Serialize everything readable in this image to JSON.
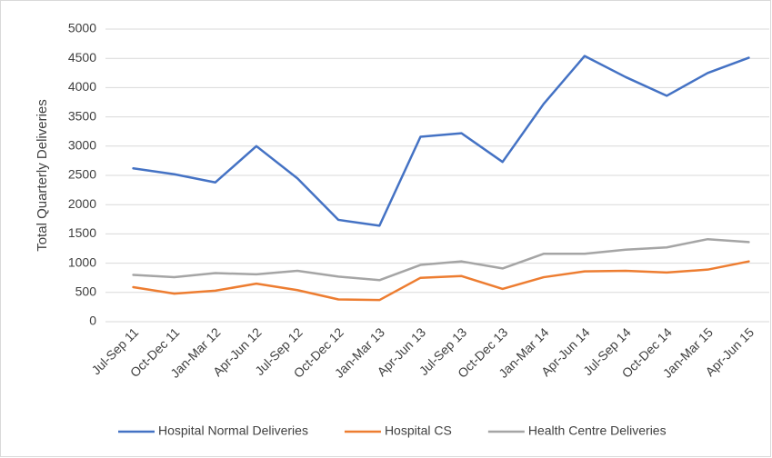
{
  "chart_data": {
    "type": "line",
    "y_label": "Total Quarterly Deliveries",
    "categories": [
      "Jul-Sep 11",
      "Oct-Dec 11",
      "Jan-Mar 12",
      "Apr-Jun 12",
      "Jul-Sep 12",
      "Oct-Dec 12",
      "Jan-Mar 13",
      "Apr-Jun 13",
      "Jul-Sep 13",
      "Oct-Dec 13",
      "Jan-Mar 14",
      "Apr-Jun 14",
      "Jul-Sep 14",
      "Oct-Dec 14",
      "Jan-Mar 15",
      "Apr-Jun 15"
    ],
    "series": [
      {
        "name": "Hospital Normal Deliveries",
        "color": "#4472c4",
        "values": [
          2620,
          2520,
          2380,
          3000,
          2450,
          1740,
          1640,
          3160,
          3220,
          2730,
          3720,
          4540,
          4180,
          3860,
          4250,
          4510
        ]
      },
      {
        "name": "Hospital CS",
        "color": "#ed7d31",
        "values": [
          590,
          480,
          530,
          650,
          540,
          380,
          370,
          750,
          780,
          560,
          760,
          860,
          870,
          840,
          890,
          1030
        ]
      },
      {
        "name": "Health Centre Deliveries",
        "color": "#a5a5a5",
        "values": [
          800,
          760,
          830,
          810,
          870,
          770,
          710,
          970,
          1030,
          910,
          1160,
          1160,
          1230,
          1270,
          1410,
          1360
        ]
      }
    ],
    "ylim": [
      0,
      5000
    ],
    "yticks": [
      0,
      500,
      1000,
      1500,
      2000,
      2500,
      3000,
      3500,
      4000,
      4500,
      5000
    ],
    "grid": true,
    "legend": "bottom"
  }
}
